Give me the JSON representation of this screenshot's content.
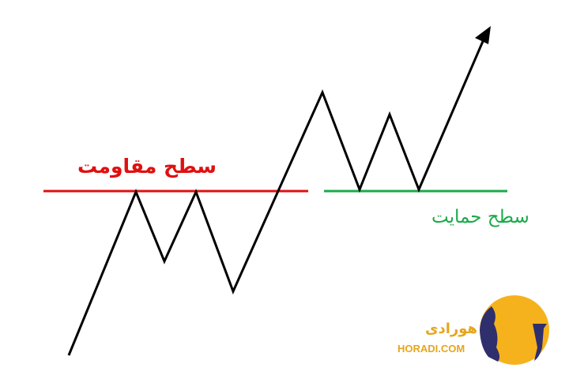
{
  "labels": {
    "resistance": "سطح مقاومت",
    "support": "سطح حمایت"
  },
  "colors": {
    "resistance": "#e01010",
    "support": "#1aaa4a",
    "price_line": "#000000",
    "logo_gold": "#f5b21c",
    "logo_navy": "#2f2f6e",
    "logo_text": "#e6a51c"
  },
  "logo": {
    "text_fa": "هورادی",
    "text_en": "HORADI.COM"
  }
}
